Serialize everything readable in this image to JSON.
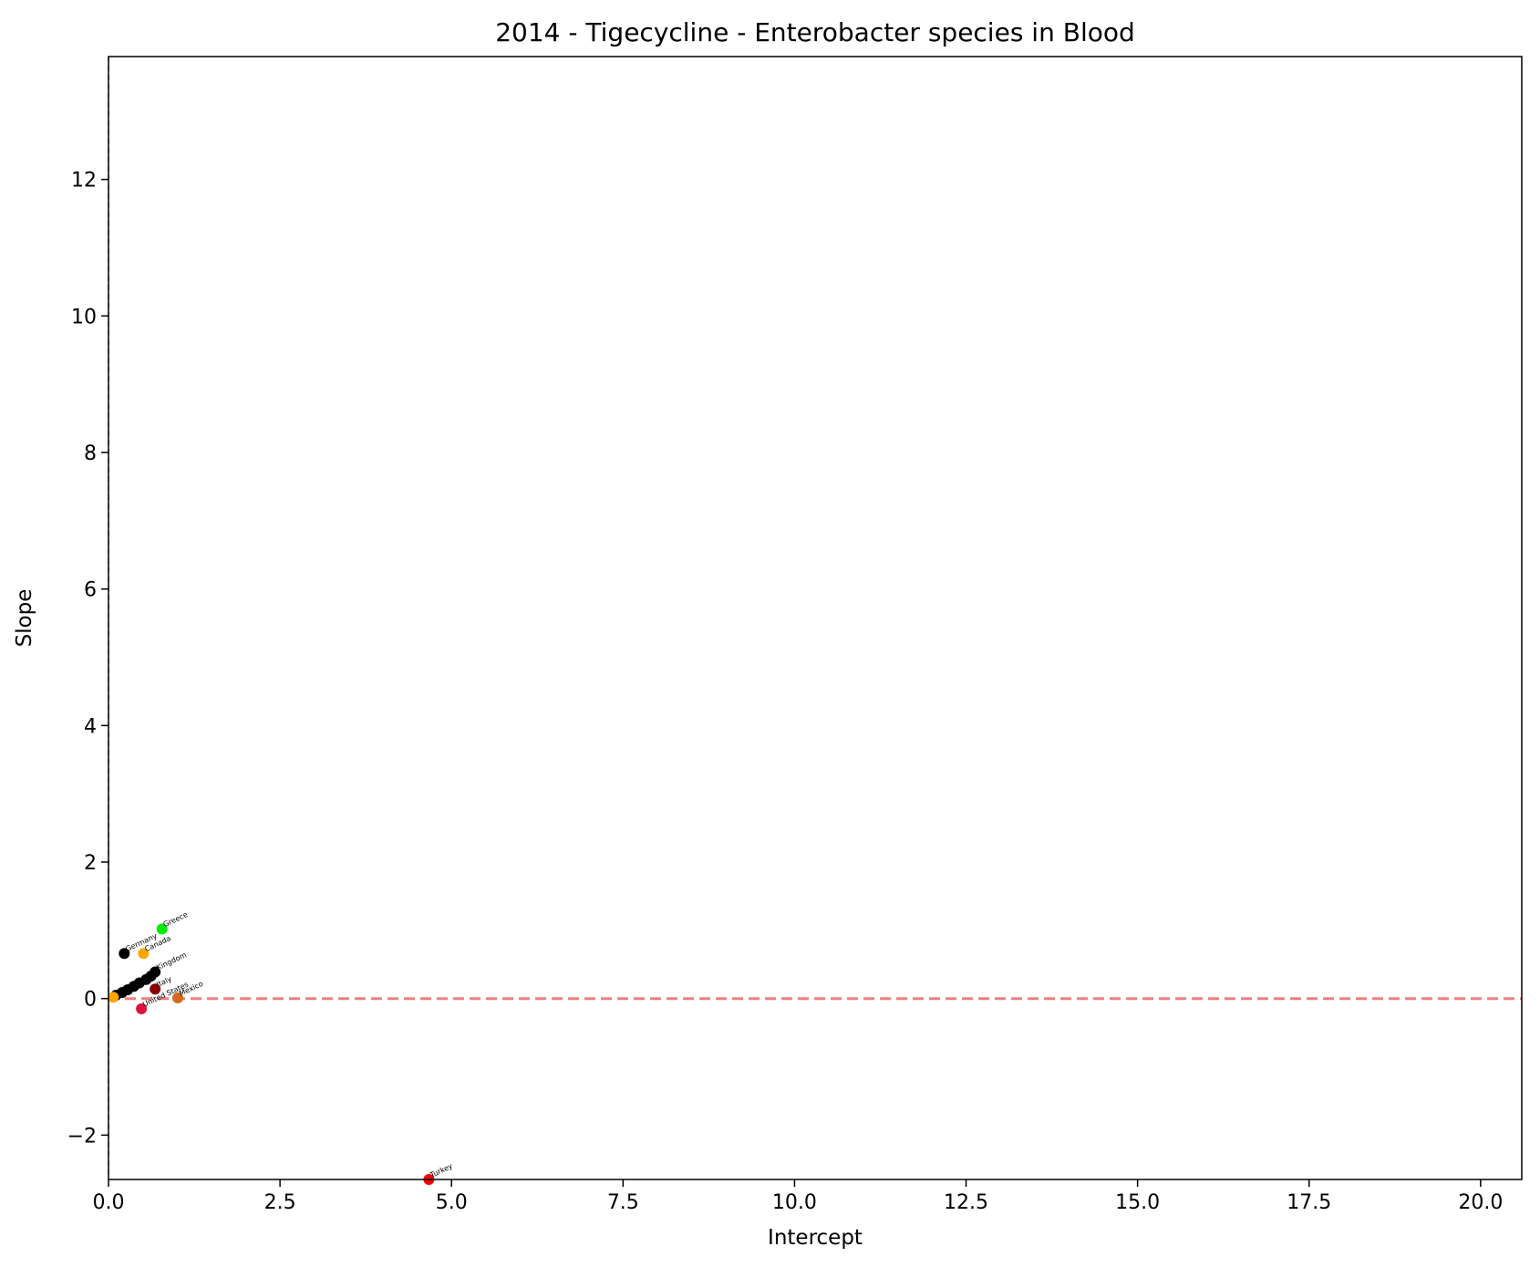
{
  "chart_data": {
    "type": "scatter",
    "title": "2014 - Tigecycline - Enterobacter species in Blood",
    "xlabel": "Intercept",
    "ylabel": "Slope",
    "xlim": [
      0,
      20.6
    ],
    "ylim": [
      -2.65,
      13.8
    ],
    "xticks": [
      0.0,
      2.5,
      5.0,
      7.5,
      10.0,
      12.5,
      15.0,
      17.5,
      20.0
    ],
    "xtick_labels": [
      "0.0",
      "2.5",
      "5.0",
      "7.5",
      "10.0",
      "12.5",
      "15.0",
      "17.5",
      "20.0"
    ],
    "yticks": [
      -2,
      0,
      2,
      4,
      6,
      8,
      10,
      12
    ],
    "ytick_labels": [
      "−2",
      "0",
      "2",
      "4",
      "6",
      "8",
      "10",
      "12"
    ],
    "reference_lines": [
      {
        "orientation": "horizontal",
        "value": 0,
        "color": "#f08080",
        "style": "dashed"
      },
      {
        "orientation": "vertical",
        "value": 0,
        "color": "#2e8b57",
        "style": "dashed"
      }
    ],
    "grid": false,
    "points": [
      {
        "label": "Greece",
        "x": 0.78,
        "y": 1.02,
        "color": "#00ee00"
      },
      {
        "label": "Germany",
        "x": 0.23,
        "y": 0.66,
        "color": "#000000"
      },
      {
        "label": "Canada",
        "x": 0.51,
        "y": 0.66,
        "color": "#ffa500"
      },
      {
        "label": "Kingdom",
        "x": 0.68,
        "y": 0.39,
        "color": "#000000"
      },
      {
        "label": "",
        "x": 0.62,
        "y": 0.33,
        "color": "#000000"
      },
      {
        "label": "",
        "x": 0.55,
        "y": 0.28,
        "color": "#000000"
      },
      {
        "label": "",
        "x": 0.45,
        "y": 0.23,
        "color": "#000000"
      },
      {
        "label": "",
        "x": 0.37,
        "y": 0.18,
        "color": "#000000"
      },
      {
        "label": "",
        "x": 0.28,
        "y": 0.13,
        "color": "#000000"
      },
      {
        "label": "",
        "x": 0.2,
        "y": 0.09,
        "color": "#000000"
      },
      {
        "label": "",
        "x": 0.11,
        "y": 0.05,
        "color": "#000000"
      },
      {
        "label": "",
        "x": 0.07,
        "y": 0.02,
        "color": "#ffa500"
      },
      {
        "label": "Italy",
        "x": 0.68,
        "y": 0.14,
        "color": "#8b0000"
      },
      {
        "label": "United States",
        "x": 0.48,
        "y": -0.15,
        "color": "#dc143c"
      },
      {
        "label": "Mexico",
        "x": 1.01,
        "y": 0.01,
        "color": "#d2691e"
      },
      {
        "label": "Turkey",
        "x": 4.67,
        "y": -2.65,
        "color": "#ff0000"
      }
    ]
  }
}
